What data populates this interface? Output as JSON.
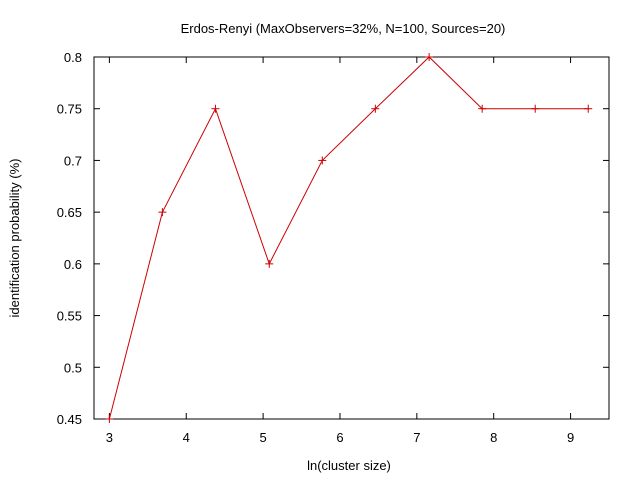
{
  "chart_data": {
    "type": "line",
    "title": "Erdos-Renyi (MaxObservers=32%, N=100, Sources=20)",
    "xlabel": "ln(cluster size)",
    "ylabel": "identification probability (%)",
    "xlim": [
      2.8,
      9.5
    ],
    "ylim": [
      0.45,
      0.8
    ],
    "xticks": [
      3,
      4,
      5,
      6,
      7,
      8,
      9
    ],
    "yticks": [
      0.45,
      0.5,
      0.55,
      0.6,
      0.65,
      0.7,
      0.75,
      0.8
    ],
    "xtick_labels": [
      "3",
      "4",
      "5",
      "6",
      "7",
      "8",
      "9"
    ],
    "ytick_labels": [
      "0.45",
      "0.5",
      "0.55",
      "0.6",
      "0.65",
      "0.7",
      "0.75",
      "0.8"
    ],
    "grid": false,
    "legend": "none",
    "marker": "plus",
    "series": [
      {
        "color": "#cc0000",
        "x": [
          3.0,
          3.69,
          4.38,
          5.08,
          5.77,
          6.46,
          7.16,
          7.85,
          8.54,
          9.23
        ],
        "y": [
          0.45,
          0.65,
          0.75,
          0.6,
          0.7,
          0.75,
          0.8,
          0.75,
          0.75,
          0.75
        ]
      }
    ]
  }
}
